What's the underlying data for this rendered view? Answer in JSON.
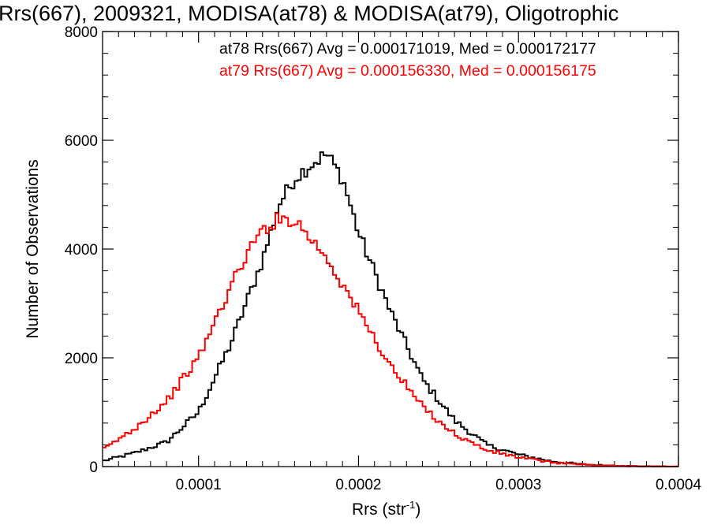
{
  "chart_data": {
    "type": "line",
    "title": "Rrs(667), 2009321, MODISA(at78) & MODISA(at79), Oligotrophic",
    "xlabel": {
      "base": "Rrs (str",
      "sup": "-1",
      "close": ")"
    },
    "ylabel": "Number of Observations",
    "xlim": [
      4e-05,
      0.0004
    ],
    "ylim": [
      0,
      8000
    ],
    "x_ticks": [
      0.0001,
      0.0002,
      0.0003,
      0.0004
    ],
    "x_tick_labels": [
      "0.0001",
      "0.0002",
      "0.0003",
      "0.0004"
    ],
    "y_ticks": [
      0,
      2000,
      4000,
      6000,
      8000
    ],
    "y_tick_labels": [
      "0",
      "2000",
      "4000",
      "6000",
      "8000"
    ],
    "style": "stepped histogram",
    "annotations": [
      {
        "text": "at78 Rrs(667) Avg = 0.000171019, Med = 0.000172177",
        "color": "#000000"
      },
      {
        "text": "at79 Rrs(667) Avg = 0.000156330, Med = 0.000156175",
        "color": "#ff0000"
      }
    ],
    "series": [
      {
        "color": "#000000",
        "x": [
          4e-05,
          6e-05,
          8e-05,
          0.0001,
          0.00012,
          0.00014,
          0.00015,
          0.00016,
          0.00017,
          0.00018,
          0.00019,
          0.0002,
          0.00022,
          0.00024,
          0.00026,
          0.00028,
          0.0003,
          0.00032,
          0.00034,
          0.00036,
          0.00038,
          0.0004
        ],
        "values": [
          100,
          250,
          450,
          1000,
          2250,
          3800,
          4800,
          5300,
          5550,
          5750,
          5300,
          4300,
          2850,
          1600,
          850,
          400,
          220,
          100,
          40,
          15,
          5,
          0
        ]
      },
      {
        "color": "#ff0000",
        "x": [
          4e-05,
          6e-05,
          8e-05,
          0.0001,
          0.00012,
          0.00013,
          0.00014,
          0.00015,
          0.00016,
          0.00017,
          0.00018,
          0.0002,
          0.00022,
          0.00024,
          0.00026,
          0.00028,
          0.0003,
          0.00032,
          0.00034,
          0.00036,
          0.00038,
          0.0004
        ],
        "values": [
          300,
          700,
          1200,
          2000,
          3300,
          3900,
          4350,
          4550,
          4550,
          4200,
          3850,
          2850,
          1850,
          1100,
          600,
          300,
          170,
          80,
          35,
          15,
          5,
          0
        ]
      }
    ]
  }
}
